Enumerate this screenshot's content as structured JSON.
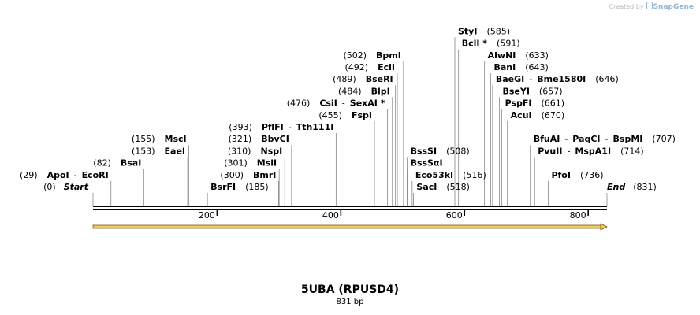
{
  "credit": {
    "text": "Created by",
    "brand": "SnapGene"
  },
  "sequence": {
    "name": "5UBA (RPUSD4)",
    "length_label": "831 bp",
    "length_bp": 831,
    "start_label": "Start",
    "end_label": "End",
    "start_pos": "(0)",
    "end_pos": "(831)",
    "ticks": [
      200,
      400,
      600,
      800
    ]
  },
  "feature": {
    "name": "orf-arrow",
    "from_bp": 0,
    "to_bp": 831,
    "color": "#f4c85c"
  },
  "sites": [
    {
      "enzymes": [
        "ApoI",
        "EcoRI"
      ],
      "pos": "(29)",
      "bp": 29,
      "side": "left",
      "row": 1
    },
    {
      "enzymes": [
        "BsaI"
      ],
      "pos": "(82)",
      "bp": 82,
      "side": "left",
      "row": 2
    },
    {
      "enzymes": [
        "EaeI"
      ],
      "pos": "(153)",
      "bp": 153,
      "side": "left",
      "row": 3
    },
    {
      "enzymes": [
        "MscI"
      ],
      "pos": "(155)",
      "bp": 155,
      "side": "left",
      "row": 4
    },
    {
      "enzymes": [
        "BsrFI"
      ],
      "pos": "(185)",
      "bp": 185,
      "side": "right",
      "row": 0
    },
    {
      "enzymes": [
        "BmrI"
      ],
      "pos": "(300)",
      "bp": 300,
      "side": "left",
      "row": 1
    },
    {
      "enzymes": [
        "MslI"
      ],
      "pos": "(301)",
      "bp": 301,
      "side": "left",
      "row": 2
    },
    {
      "enzymes": [
        "NspI"
      ],
      "pos": "(310)",
      "bp": 310,
      "side": "left",
      "row": 3
    },
    {
      "enzymes": [
        "BbvCI"
      ],
      "pos": "(321)",
      "bp": 321,
      "side": "left",
      "row": 4
    },
    {
      "enzymes": [
        "PflFI",
        "Tth111I"
      ],
      "pos": "(393)",
      "bp": 393,
      "side": "left",
      "row": 5
    },
    {
      "enzymes": [
        "FspI"
      ],
      "pos": "(455)",
      "bp": 455,
      "side": "left",
      "row": 6
    },
    {
      "enzymes": [
        "CsiI",
        "SexAI *"
      ],
      "pos": "(476)",
      "bp": 476,
      "side": "left",
      "row": 7
    },
    {
      "enzymes": [
        "BlpI"
      ],
      "pos": "(484)",
      "bp": 484,
      "side": "left",
      "row": 8
    },
    {
      "enzymes": [
        "BseRI"
      ],
      "pos": "(489)",
      "bp": 489,
      "side": "left",
      "row": 9
    },
    {
      "enzymes": [
        "EciI"
      ],
      "pos": "(492)",
      "bp": 492,
      "side": "left",
      "row": 10
    },
    {
      "enzymes": [
        "BpmI"
      ],
      "pos": "(502)",
      "bp": 502,
      "side": "left",
      "row": 11
    },
    {
      "enzymes": [
        "BssSI"
      ],
      "pos": "(508)",
      "bp": 508,
      "side": "right",
      "row": 3
    },
    {
      "enzymes": [
        "BssSαI"
      ],
      "pos": "",
      "bp": 508,
      "side": "right",
      "row": 2
    },
    {
      "enzymes": [
        "Eco53kI"
      ],
      "pos": "(516)",
      "bp": 516,
      "side": "right",
      "row": 1
    },
    {
      "enzymes": [
        "SacI"
      ],
      "pos": "(518)",
      "bp": 518,
      "side": "right",
      "row": 0
    },
    {
      "enzymes": [
        "StyI"
      ],
      "pos": "(585)",
      "bp": 585,
      "side": "right",
      "row": 13
    },
    {
      "enzymes": [
        "BclI *"
      ],
      "pos": "(591)",
      "bp": 591,
      "side": "right",
      "row": 12
    },
    {
      "enzymes": [
        "AlwNI"
      ],
      "pos": "(633)",
      "bp": 633,
      "side": "right",
      "row": 11
    },
    {
      "enzymes": [
        "BanI"
      ],
      "pos": "(643)",
      "bp": 643,
      "side": "right",
      "row": 10
    },
    {
      "enzymes": [
        "BaeGI",
        "Bme1580I"
      ],
      "pos": "(646)",
      "bp": 646,
      "side": "right",
      "row": 9
    },
    {
      "enzymes": [
        "BseYI"
      ],
      "pos": "(657)",
      "bp": 657,
      "side": "right",
      "row": 8
    },
    {
      "enzymes": [
        "PspFI"
      ],
      "pos": "(661)",
      "bp": 661,
      "side": "right",
      "row": 7
    },
    {
      "enzymes": [
        "AcuI"
      ],
      "pos": "(670)",
      "bp": 670,
      "side": "right",
      "row": 6
    },
    {
      "enzymes": [
        "BfuAI",
        "PaqCI",
        "BspMI"
      ],
      "pos": "(707)",
      "bp": 707,
      "side": "right",
      "row": 4
    },
    {
      "enzymes": [
        "PvuII",
        "MspA1I"
      ],
      "pos": "(714)",
      "bp": 714,
      "side": "right",
      "row": 3
    },
    {
      "enzymes": [
        "PfoI"
      ],
      "pos": "(736)",
      "bp": 736,
      "side": "right",
      "row": 1
    }
  ]
}
